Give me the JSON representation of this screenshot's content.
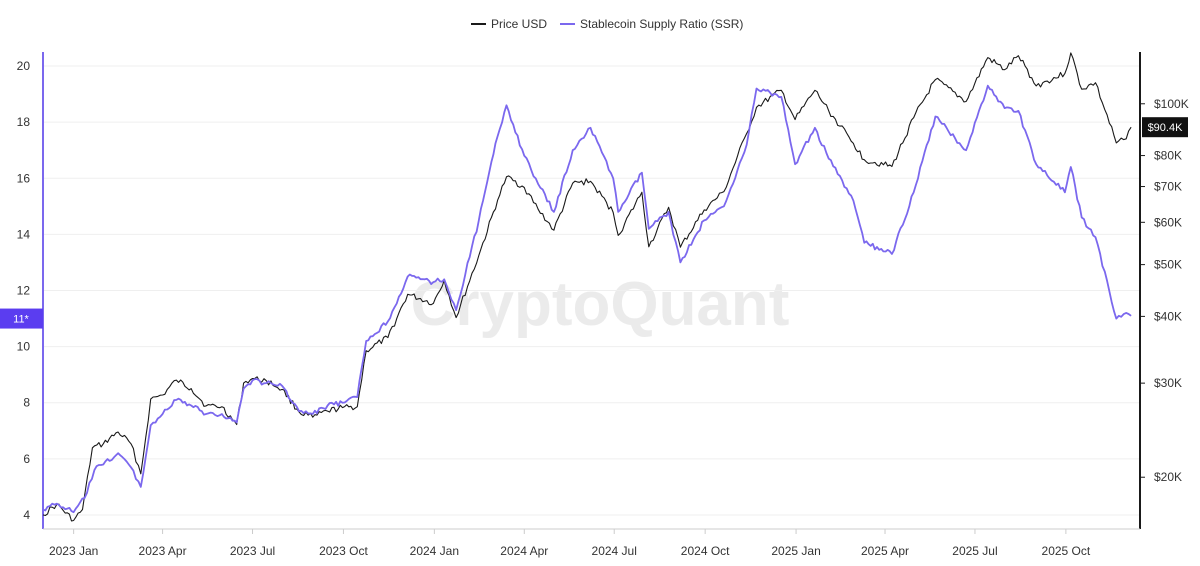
{
  "chart_data": {
    "type": "line",
    "title": "",
    "watermark": "CryptoQuant",
    "legend": {
      "placement": "top-center",
      "items": [
        "Price USD",
        "Stablecoin Supply Ratio (SSR)"
      ]
    },
    "x_axis": {
      "range": [
        "2022-12-01",
        "2025-12-15"
      ],
      "tick_labels": [
        {
          "label": "2023 Jan",
          "date": "2023-01-01"
        },
        {
          "label": "2023 Apr",
          "date": "2023-04-01"
        },
        {
          "label": "2023 Jul",
          "date": "2023-07-01"
        },
        {
          "label": "2023 Oct",
          "date": "2023-10-01"
        },
        {
          "label": "2024 Jan",
          "date": "2024-01-01"
        },
        {
          "label": "2024 Apr",
          "date": "2024-04-01"
        },
        {
          "label": "2024 Jul",
          "date": "2024-07-01"
        },
        {
          "label": "2024 Oct",
          "date": "2024-10-01"
        },
        {
          "label": "2025 Jan",
          "date": "2025-01-01"
        },
        {
          "label": "2025 Apr",
          "date": "2025-04-01"
        },
        {
          "label": "2025 Jul",
          "date": "2025-07-01"
        },
        {
          "label": "2025 Oct",
          "date": "2025-10-01"
        }
      ]
    },
    "y_left": {
      "range": [
        3.5,
        20.5
      ],
      "ticks": [
        4,
        6,
        8,
        10,
        12,
        14,
        16,
        18,
        20
      ],
      "current_badge": {
        "label": "11*",
        "value": 11
      }
    },
    "y_right": {
      "scale": "log",
      "range": [
        16000,
        125000
      ],
      "ticks": [
        {
          "label": "$20K",
          "value": 20000
        },
        {
          "label": "$30K",
          "value": 30000
        },
        {
          "label": "$40K",
          "value": 40000
        },
        {
          "label": "$50K",
          "value": 50000
        },
        {
          "label": "$60K",
          "value": 60000
        },
        {
          "label": "$70K",
          "value": 70000
        },
        {
          "label": "$80K",
          "value": 80000
        },
        {
          "label": "$100K",
          "value": 100000
        }
      ],
      "current_badge": {
        "label": "$90.4K",
        "value": 90400
      }
    },
    "series": [
      {
        "name": "Price USD",
        "axis": "right",
        "color": "#1a1a1a",
        "points": [
          [
            "2022-12-01",
            17000
          ],
          [
            "2022-12-15",
            17800
          ],
          [
            "2023-01-01",
            16600
          ],
          [
            "2023-01-10",
            17400
          ],
          [
            "2023-01-20",
            22700
          ],
          [
            "2023-01-31",
            23100
          ],
          [
            "2023-02-15",
            24300
          ],
          [
            "2023-02-28",
            23100
          ],
          [
            "2023-03-10",
            20300
          ],
          [
            "2023-03-20",
            28000
          ],
          [
            "2023-04-01",
            28500
          ],
          [
            "2023-04-15",
            30400
          ],
          [
            "2023-04-30",
            29300
          ],
          [
            "2023-05-15",
            27200
          ],
          [
            "2023-05-31",
            27100
          ],
          [
            "2023-06-15",
            25100
          ],
          [
            "2023-06-22",
            30000
          ],
          [
            "2023-07-01",
            30600
          ],
          [
            "2023-07-15",
            30300
          ],
          [
            "2023-07-31",
            29200
          ],
          [
            "2023-08-17",
            26500
          ],
          [
            "2023-08-31",
            25900
          ],
          [
            "2023-09-15",
            26600
          ],
          [
            "2023-09-30",
            27000
          ],
          [
            "2023-10-15",
            27100
          ],
          [
            "2023-10-24",
            34500
          ],
          [
            "2023-11-15",
            36500
          ],
          [
            "2023-12-05",
            44000
          ],
          [
            "2023-12-31",
            42300
          ],
          [
            "2024-01-11",
            46700
          ],
          [
            "2024-01-23",
            39800
          ],
          [
            "2024-02-15",
            52000
          ],
          [
            "2024-03-05",
            66000
          ],
          [
            "2024-03-14",
            73000
          ],
          [
            "2024-04-01",
            69700
          ],
          [
            "2024-04-15",
            63500
          ],
          [
            "2024-05-01",
            58000
          ],
          [
            "2024-05-20",
            71000
          ],
          [
            "2024-06-07",
            71600
          ],
          [
            "2024-06-30",
            62600
          ],
          [
            "2024-07-05",
            56700
          ],
          [
            "2024-07-29",
            68300
          ],
          [
            "2024-08-05",
            54000
          ],
          [
            "2024-08-25",
            64000
          ],
          [
            "2024-09-06",
            53900
          ],
          [
            "2024-09-30",
            63300
          ],
          [
            "2024-10-20",
            68500
          ],
          [
            "2024-11-12",
            88000
          ],
          [
            "2024-11-22",
            98500
          ],
          [
            "2024-12-17",
            106000
          ],
          [
            "2024-12-31",
            93400
          ],
          [
            "2025-01-20",
            106000
          ],
          [
            "2025-02-03",
            97000
          ],
          [
            "2025-02-28",
            84300
          ],
          [
            "2025-03-11",
            78600
          ],
          [
            "2025-04-08",
            76300
          ],
          [
            "2025-04-30",
            94200
          ],
          [
            "2025-05-22",
            111000
          ],
          [
            "2025-06-22",
            101000
          ],
          [
            "2025-07-14",
            122000
          ],
          [
            "2025-07-31",
            115800
          ],
          [
            "2025-08-14",
            123000
          ],
          [
            "2025-09-01",
            108000
          ],
          [
            "2025-09-30",
            114000
          ],
          [
            "2025-10-06",
            124500
          ],
          [
            "2025-10-17",
            106500
          ],
          [
            "2025-10-31",
            109500
          ],
          [
            "2025-11-21",
            84500
          ],
          [
            "2025-12-01",
            86000
          ],
          [
            "2025-12-06",
            90400
          ]
        ]
      },
      {
        "name": "Stablecoin Supply Ratio (SSR)",
        "axis": "left",
        "color": "#7b68ee",
        "points": [
          [
            "2022-12-01",
            4.2
          ],
          [
            "2022-12-15",
            4.4
          ],
          [
            "2023-01-01",
            4.1
          ],
          [
            "2023-01-12",
            4.6
          ],
          [
            "2023-01-22",
            5.6
          ],
          [
            "2023-01-31",
            5.8
          ],
          [
            "2023-02-15",
            6.2
          ],
          [
            "2023-02-28",
            5.7
          ],
          [
            "2023-03-10",
            5.0
          ],
          [
            "2023-03-20",
            7.2
          ],
          [
            "2023-04-01",
            7.6
          ],
          [
            "2023-04-15",
            8.1
          ],
          [
            "2023-04-30",
            7.9
          ],
          [
            "2023-05-15",
            7.6
          ],
          [
            "2023-05-31",
            7.6
          ],
          [
            "2023-06-15",
            7.3
          ],
          [
            "2023-06-22",
            8.5
          ],
          [
            "2023-07-01",
            8.8
          ],
          [
            "2023-07-15",
            8.7
          ],
          [
            "2023-07-31",
            8.6
          ],
          [
            "2023-08-17",
            7.7
          ],
          [
            "2023-08-31",
            7.6
          ],
          [
            "2023-09-15",
            7.9
          ],
          [
            "2023-09-30",
            8.0
          ],
          [
            "2023-10-15",
            8.2
          ],
          [
            "2023-10-24",
            10.2
          ],
          [
            "2023-11-15",
            10.9
          ],
          [
            "2023-12-05",
            12.5
          ],
          [
            "2023-12-31",
            12.3
          ],
          [
            "2024-01-11",
            12.4
          ],
          [
            "2024-01-23",
            11.3
          ],
          [
            "2024-02-15",
            14.5
          ],
          [
            "2024-03-05",
            17.5
          ],
          [
            "2024-03-14",
            18.6
          ],
          [
            "2024-04-01",
            16.8
          ],
          [
            "2024-04-15",
            15.8
          ],
          [
            "2024-05-01",
            14.8
          ],
          [
            "2024-05-20",
            17.0
          ],
          [
            "2024-06-07",
            17.8
          ],
          [
            "2024-06-30",
            16.0
          ],
          [
            "2024-07-05",
            14.8
          ],
          [
            "2024-07-29",
            16.2
          ],
          [
            "2024-08-05",
            14.2
          ],
          [
            "2024-08-25",
            14.8
          ],
          [
            "2024-09-06",
            13.0
          ],
          [
            "2024-09-30",
            14.5
          ],
          [
            "2024-10-20",
            15.0
          ],
          [
            "2024-11-12",
            17.2
          ],
          [
            "2024-11-22",
            19.2
          ],
          [
            "2024-12-17",
            18.9
          ],
          [
            "2024-12-31",
            16.5
          ],
          [
            "2025-01-20",
            17.8
          ],
          [
            "2025-02-03",
            16.7
          ],
          [
            "2025-02-28",
            15.2
          ],
          [
            "2025-03-11",
            13.7
          ],
          [
            "2025-04-08",
            13.3
          ],
          [
            "2025-04-30",
            15.5
          ],
          [
            "2025-05-22",
            18.2
          ],
          [
            "2025-06-22",
            17.0
          ],
          [
            "2025-07-14",
            19.3
          ],
          [
            "2025-07-31",
            18.5
          ],
          [
            "2025-08-14",
            18.4
          ],
          [
            "2025-09-01",
            16.5
          ],
          [
            "2025-09-30",
            15.5
          ],
          [
            "2025-10-06",
            16.4
          ],
          [
            "2025-10-17",
            14.6
          ],
          [
            "2025-10-31",
            13.9
          ],
          [
            "2025-11-21",
            11.0
          ],
          [
            "2025-12-01",
            11.2
          ],
          [
            "2025-12-06",
            11.1
          ]
        ]
      }
    ]
  }
}
